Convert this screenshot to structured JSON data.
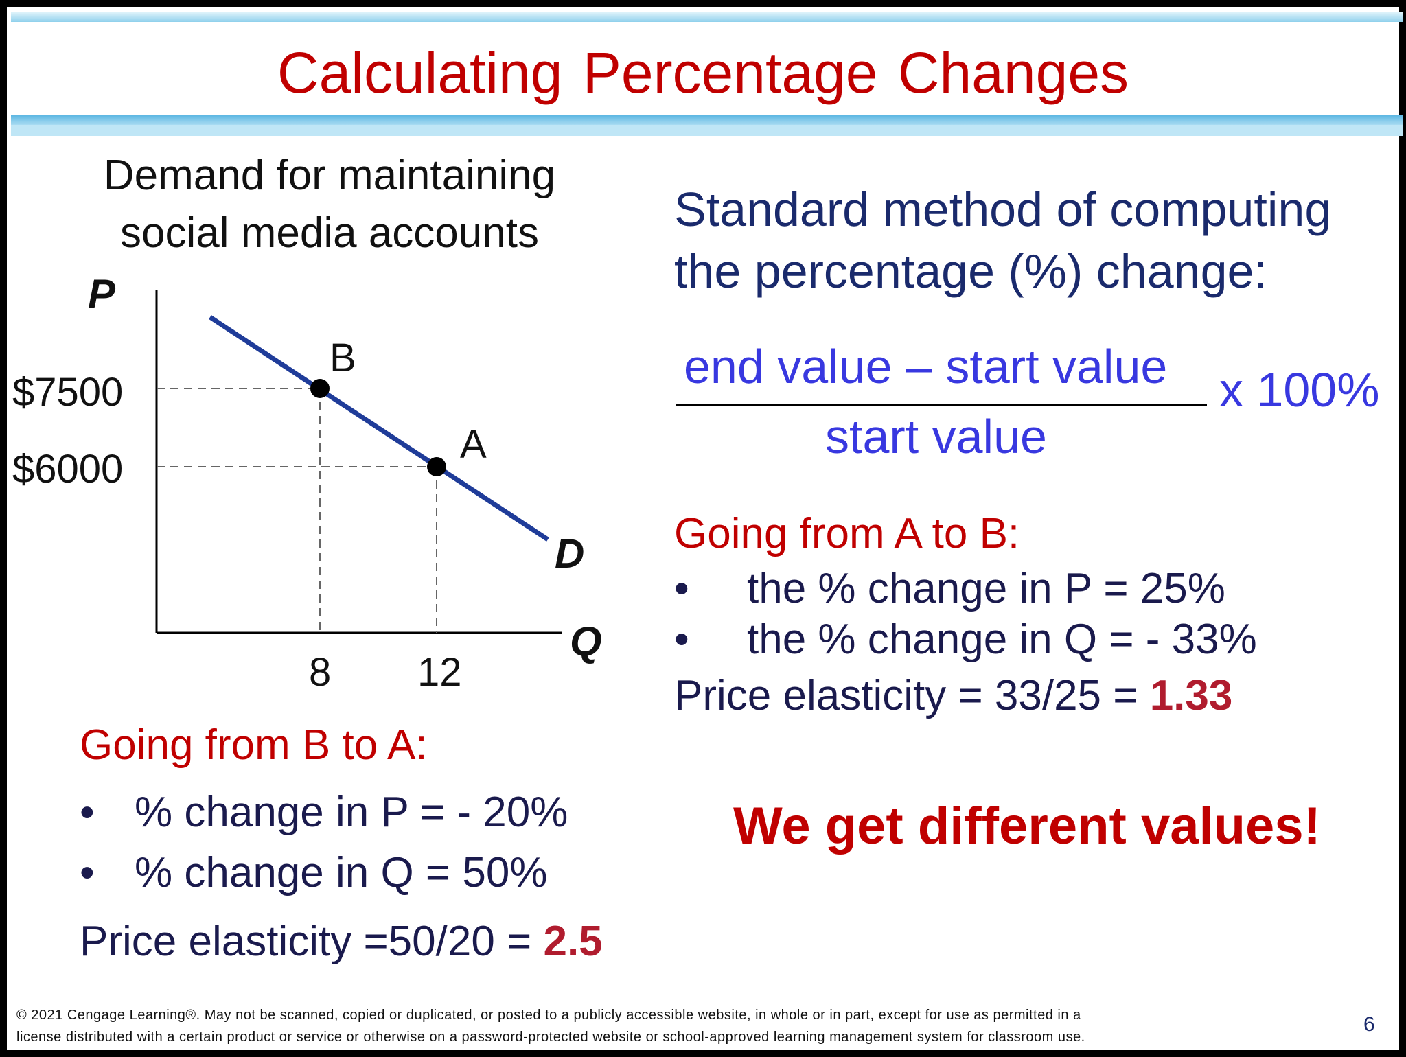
{
  "title": "Calculating  Percentage  Changes",
  "graph": {
    "title_line1": "Demand for maintaining",
    "title_line2": "social media accounts",
    "y_axis_label": "P",
    "x_axis_label": "Q",
    "curve_label": "D",
    "price_ticks": [
      "$7500",
      "$6000"
    ],
    "quantity_ticks": [
      "8",
      "12"
    ],
    "point_b_label": "B",
    "point_a_label": "A"
  },
  "chart_data": {
    "type": "line",
    "series": [
      {
        "name": "D",
        "points": [
          {
            "label": "B",
            "x": 8,
            "y": 7500
          },
          {
            "label": "A",
            "x": 12,
            "y": 6000
          }
        ]
      }
    ],
    "xlabel": "Q",
    "ylabel": "P",
    "x_ticks": [
      "8",
      "12"
    ],
    "y_ticks": [
      "$7500",
      "$6000"
    ]
  },
  "left": {
    "heading": "Going from B to A:",
    "bullet_symbol": "•",
    "bullets": [
      "% change in P = - 20%",
      "% change in Q = 50%"
    ],
    "elasticity_prefix": "Price elasticity =50/20 = ",
    "elasticity_value": "2.5"
  },
  "right": {
    "heading_line1": "Standard method of computing",
    "heading_line2": "the percentage (%) change:",
    "numerator": "end value – start value",
    "denominator": "start value",
    "multiplier": "x 100%",
    "sub_heading": "Going from A to B:",
    "bullet_symbol": "•",
    "bullets": [
      "the % change in P = 25%",
      "the % change in Q = - 33%"
    ],
    "elasticity_prefix": "Price elasticity = 33/25 = ",
    "elasticity_value": "1.33",
    "conclusion": "We get different values!"
  },
  "footer": {
    "line1": "© 2021 Cengage Learning®. May not be scanned, copied or duplicated, or posted to a publicly accessible website, in whole or in part, except for use as permitted in a",
    "line2": "license distributed with a certain product or service or otherwise on a password-protected website or school-approved learning management system for classroom use.",
    "page_number": "6"
  }
}
